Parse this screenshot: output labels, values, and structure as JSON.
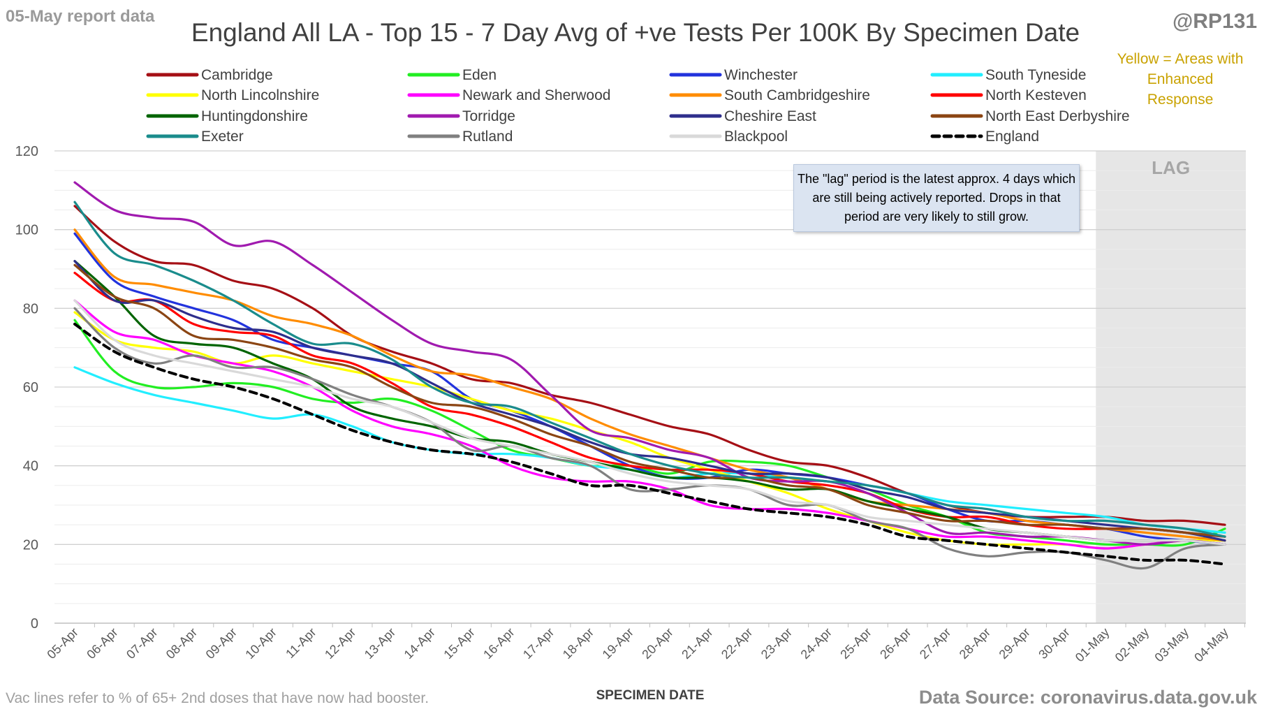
{
  "header": {
    "report_date": "05-May report data",
    "title": "England All LA - Top 15 - 7 Day Avg of +ve Tests Per 100K By Specimen Date",
    "handle": "@RP131",
    "yellow_note": "Yellow = Areas with Enhanced Response"
  },
  "footer": {
    "vac_note": "Vac lines refer to % of 65+ 2nd doses that have now had booster.",
    "source": "Data Source: coronavirus.data.gov.uk"
  },
  "lag": {
    "label": "LAG",
    "note": "The \"lag\" period is the latest approx. 4 days which are still being actively reported. Drops in that period are very likely to still grow."
  },
  "chart_data": {
    "type": "line",
    "title": "England All LA - Top 15 - 7 Day Avg of +ve Tests Per 100K By Specimen Date",
    "xlabel": "SPECIMEN DATE",
    "ylabel": "",
    "ylim": [
      0,
      120
    ],
    "yticks": [
      0,
      20,
      40,
      60,
      80,
      100,
      120
    ],
    "grid": true,
    "legend_position": "top",
    "lag_start": "01-May",
    "lag_end": "04-May",
    "categories": [
      "05-Apr",
      "06-Apr",
      "07-Apr",
      "08-Apr",
      "09-Apr",
      "10-Apr",
      "11-Apr",
      "12-Apr",
      "13-Apr",
      "14-Apr",
      "15-Apr",
      "16-Apr",
      "17-Apr",
      "18-Apr",
      "19-Apr",
      "20-Apr",
      "21-Apr",
      "22-Apr",
      "23-Apr",
      "24-Apr",
      "25-Apr",
      "26-Apr",
      "27-Apr",
      "28-Apr",
      "29-Apr",
      "30-Apr",
      "01-May",
      "02-May",
      "03-May",
      "04-May"
    ],
    "series": [
      {
        "name": "Cambridge",
        "color": "#a50f15",
        "dash": false,
        "values": [
          106,
          97,
          92,
          91,
          87,
          85,
          80,
          73,
          69,
          66,
          62,
          61,
          58,
          56,
          53,
          50,
          48,
          44,
          41,
          40,
          37,
          33,
          30,
          28,
          27,
          27,
          27,
          26,
          26,
          25
        ]
      },
      {
        "name": "Eden",
        "color": "#22ee22",
        "dash": false,
        "values": [
          77,
          64,
          60,
          60,
          61,
          60,
          57,
          56,
          57,
          54,
          49,
          44,
          42,
          40,
          40,
          38,
          41,
          41,
          40,
          37,
          34,
          30,
          27,
          23,
          22,
          21,
          20,
          20,
          20,
          24
        ]
      },
      {
        "name": "Winchester",
        "color": "#2233dd",
        "dash": false,
        "values": [
          99,
          87,
          83,
          80,
          77,
          72,
          70,
          68,
          66,
          64,
          57,
          54,
          50,
          45,
          40,
          37,
          37,
          39,
          38,
          37,
          35,
          33,
          29,
          26,
          26,
          25,
          24,
          22,
          21,
          20
        ]
      },
      {
        "name": "South Tyneside",
        "color": "#22eeff",
        "dash": false,
        "values": [
          65,
          61,
          58,
          56,
          54,
          52,
          53,
          50,
          46,
          44,
          43,
          43,
          42,
          40,
          39,
          37,
          38,
          38,
          37,
          36,
          35,
          33,
          31,
          30,
          29,
          28,
          27,
          25,
          24,
          23
        ]
      },
      {
        "name": "North Lincolnshire",
        "color": "#ffff00",
        "dash": false,
        "values": [
          79,
          72,
          70,
          69,
          66,
          68,
          66,
          64,
          62,
          60,
          57,
          54,
          52,
          49,
          46,
          42,
          39,
          36,
          33,
          29,
          26,
          23,
          21,
          20,
          20,
          20,
          19,
          20,
          21,
          21
        ]
      },
      {
        "name": "Newark and Sherwood",
        "color": "#ff00ff",
        "dash": false,
        "values": [
          82,
          74,
          72,
          68,
          66,
          64,
          60,
          54,
          50,
          48,
          45,
          40,
          37,
          36,
          36,
          34,
          30,
          29,
          29,
          28,
          26,
          24,
          22,
          22,
          21,
          20,
          19,
          20,
          21,
          20
        ]
      },
      {
        "name": "South Cambridgeshire",
        "color": "#ff8c00",
        "dash": false,
        "values": [
          100,
          88,
          86,
          84,
          82,
          78,
          76,
          73,
          68,
          64,
          63,
          60,
          57,
          52,
          48,
          45,
          42,
          39,
          37,
          34,
          31,
          30,
          29,
          28,
          26,
          25,
          24,
          23,
          22,
          21
        ]
      },
      {
        "name": "North Kesteven",
        "color": "#ff0000",
        "dash": false,
        "values": [
          89,
          82,
          82,
          76,
          74,
          73,
          68,
          66,
          61,
          55,
          53,
          50,
          46,
          42,
          40,
          39,
          39,
          38,
          36,
          35,
          33,
          29,
          27,
          27,
          25,
          24,
          24,
          24,
          23,
          22
        ]
      },
      {
        "name": "Huntingdonshire",
        "color": "#006400",
        "dash": false,
        "values": [
          92,
          83,
          73,
          71,
          70,
          66,
          62,
          55,
          52,
          50,
          47,
          46,
          43,
          41,
          39,
          37,
          37,
          36,
          34,
          34,
          31,
          29,
          27,
          24,
          23,
          22,
          21,
          21,
          21,
          20
        ]
      },
      {
        "name": "Torridge",
        "color": "#a01aaf",
        "dash": false,
        "values": [
          112,
          105,
          103,
          102,
          96,
          97,
          91,
          84,
          77,
          71,
          69,
          67,
          58,
          49,
          47,
          44,
          42,
          37,
          36,
          36,
          33,
          28,
          23,
          23,
          22,
          22,
          21,
          20,
          21,
          20
        ]
      },
      {
        "name": "Cheshire East",
        "color": "#2e2e8c",
        "dash": false,
        "values": [
          92,
          82,
          82,
          78,
          75,
          74,
          70,
          68,
          66,
          61,
          56,
          53,
          50,
          46,
          43,
          42,
          40,
          38,
          38,
          37,
          34,
          32,
          29,
          28,
          27,
          26,
          25,
          24,
          23,
          21
        ]
      },
      {
        "name": "North East Derbyshire",
        "color": "#8b4513",
        "dash": false,
        "values": [
          91,
          83,
          80,
          73,
          72,
          70,
          67,
          65,
          60,
          56,
          55,
          52,
          48,
          45,
          41,
          39,
          37,
          37,
          35,
          34,
          30,
          28,
          26,
          26,
          25,
          25,
          24,
          24,
          23,
          22
        ]
      },
      {
        "name": "Exeter",
        "color": "#1a8c8c",
        "dash": false,
        "values": [
          107,
          94,
          91,
          87,
          82,
          76,
          71,
          71,
          67,
          60,
          56,
          55,
          51,
          47,
          43,
          40,
          38,
          37,
          37,
          36,
          35,
          33,
          30,
          29,
          27,
          26,
          26,
          25,
          24,
          22
        ]
      },
      {
        "name": "Rutland",
        "color": "#808080",
        "dash": false,
        "values": [
          80,
          70,
          66,
          68,
          65,
          65,
          62,
          58,
          55,
          51,
          44,
          45,
          42,
          40,
          34,
          34,
          35,
          34,
          30,
          30,
          26,
          24,
          19,
          17,
          18,
          18,
          16,
          14,
          19,
          20
        ]
      },
      {
        "name": "Blackpool",
        "color": "#d9d9d9",
        "dash": false,
        "values": [
          82,
          72,
          68,
          66,
          64,
          62,
          60,
          57,
          55,
          51,
          47,
          45,
          43,
          41,
          38,
          36,
          35,
          34,
          31,
          30,
          27,
          26,
          25,
          24,
          23,
          22,
          21,
          21,
          21,
          20
        ]
      },
      {
        "name": "England",
        "color": "#000000",
        "dash": true,
        "values": [
          76,
          69,
          65,
          62,
          60,
          57,
          53,
          49,
          46,
          44,
          43,
          41,
          38,
          35,
          35,
          33,
          31,
          29,
          28,
          27,
          25,
          22,
          21,
          20,
          19,
          18,
          17,
          16,
          16,
          15
        ]
      }
    ]
  }
}
